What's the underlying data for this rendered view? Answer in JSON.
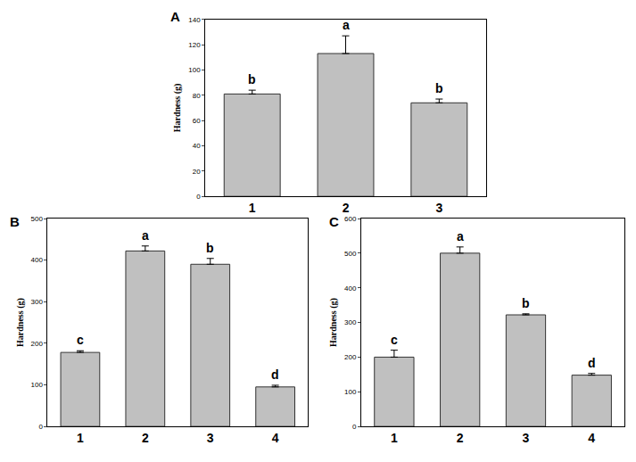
{
  "chart_data": [
    {
      "type": "bar",
      "title": "A",
      "y_label": "Hardness (g)",
      "categories": [
        "1",
        "2",
        "3"
      ],
      "values": [
        81,
        113,
        74
      ],
      "errors": [
        3,
        14,
        3
      ],
      "annotations": [
        "b",
        "a",
        "b"
      ],
      "color": "#c0c0c0",
      "ylim": [
        0,
        140
      ],
      "yticks": [
        0,
        20,
        40,
        60,
        80,
        100,
        120,
        140
      ],
      "grid": false
    },
    {
      "type": "bar",
      "title": "B",
      "y_label": "Hardness (g)",
      "categories": [
        "1",
        "2",
        "3",
        "4"
      ],
      "values": [
        178,
        422,
        390,
        95
      ],
      "errors": [
        4,
        12,
        14,
        4
      ],
      "annotations": [
        "c",
        "a",
        "b",
        "d"
      ],
      "color": "#c0c0c0",
      "ylim": [
        0,
        500
      ],
      "yticks": [
        0,
        100,
        200,
        300,
        400,
        500
      ],
      "grid": false
    },
    {
      "type": "bar",
      "title": "C",
      "y_label": "Hardness (g)",
      "categories": [
        "1",
        "2",
        "3",
        "4"
      ],
      "values": [
        200,
        500,
        322,
        148
      ],
      "errors": [
        20,
        18,
        3,
        5
      ],
      "annotations": [
        "c",
        "a",
        "b",
        "d"
      ],
      "color": "#c0c0c0",
      "ylim": [
        0,
        600
      ],
      "yticks": [
        0,
        100,
        200,
        300,
        400,
        500,
        600
      ],
      "grid": false
    }
  ]
}
